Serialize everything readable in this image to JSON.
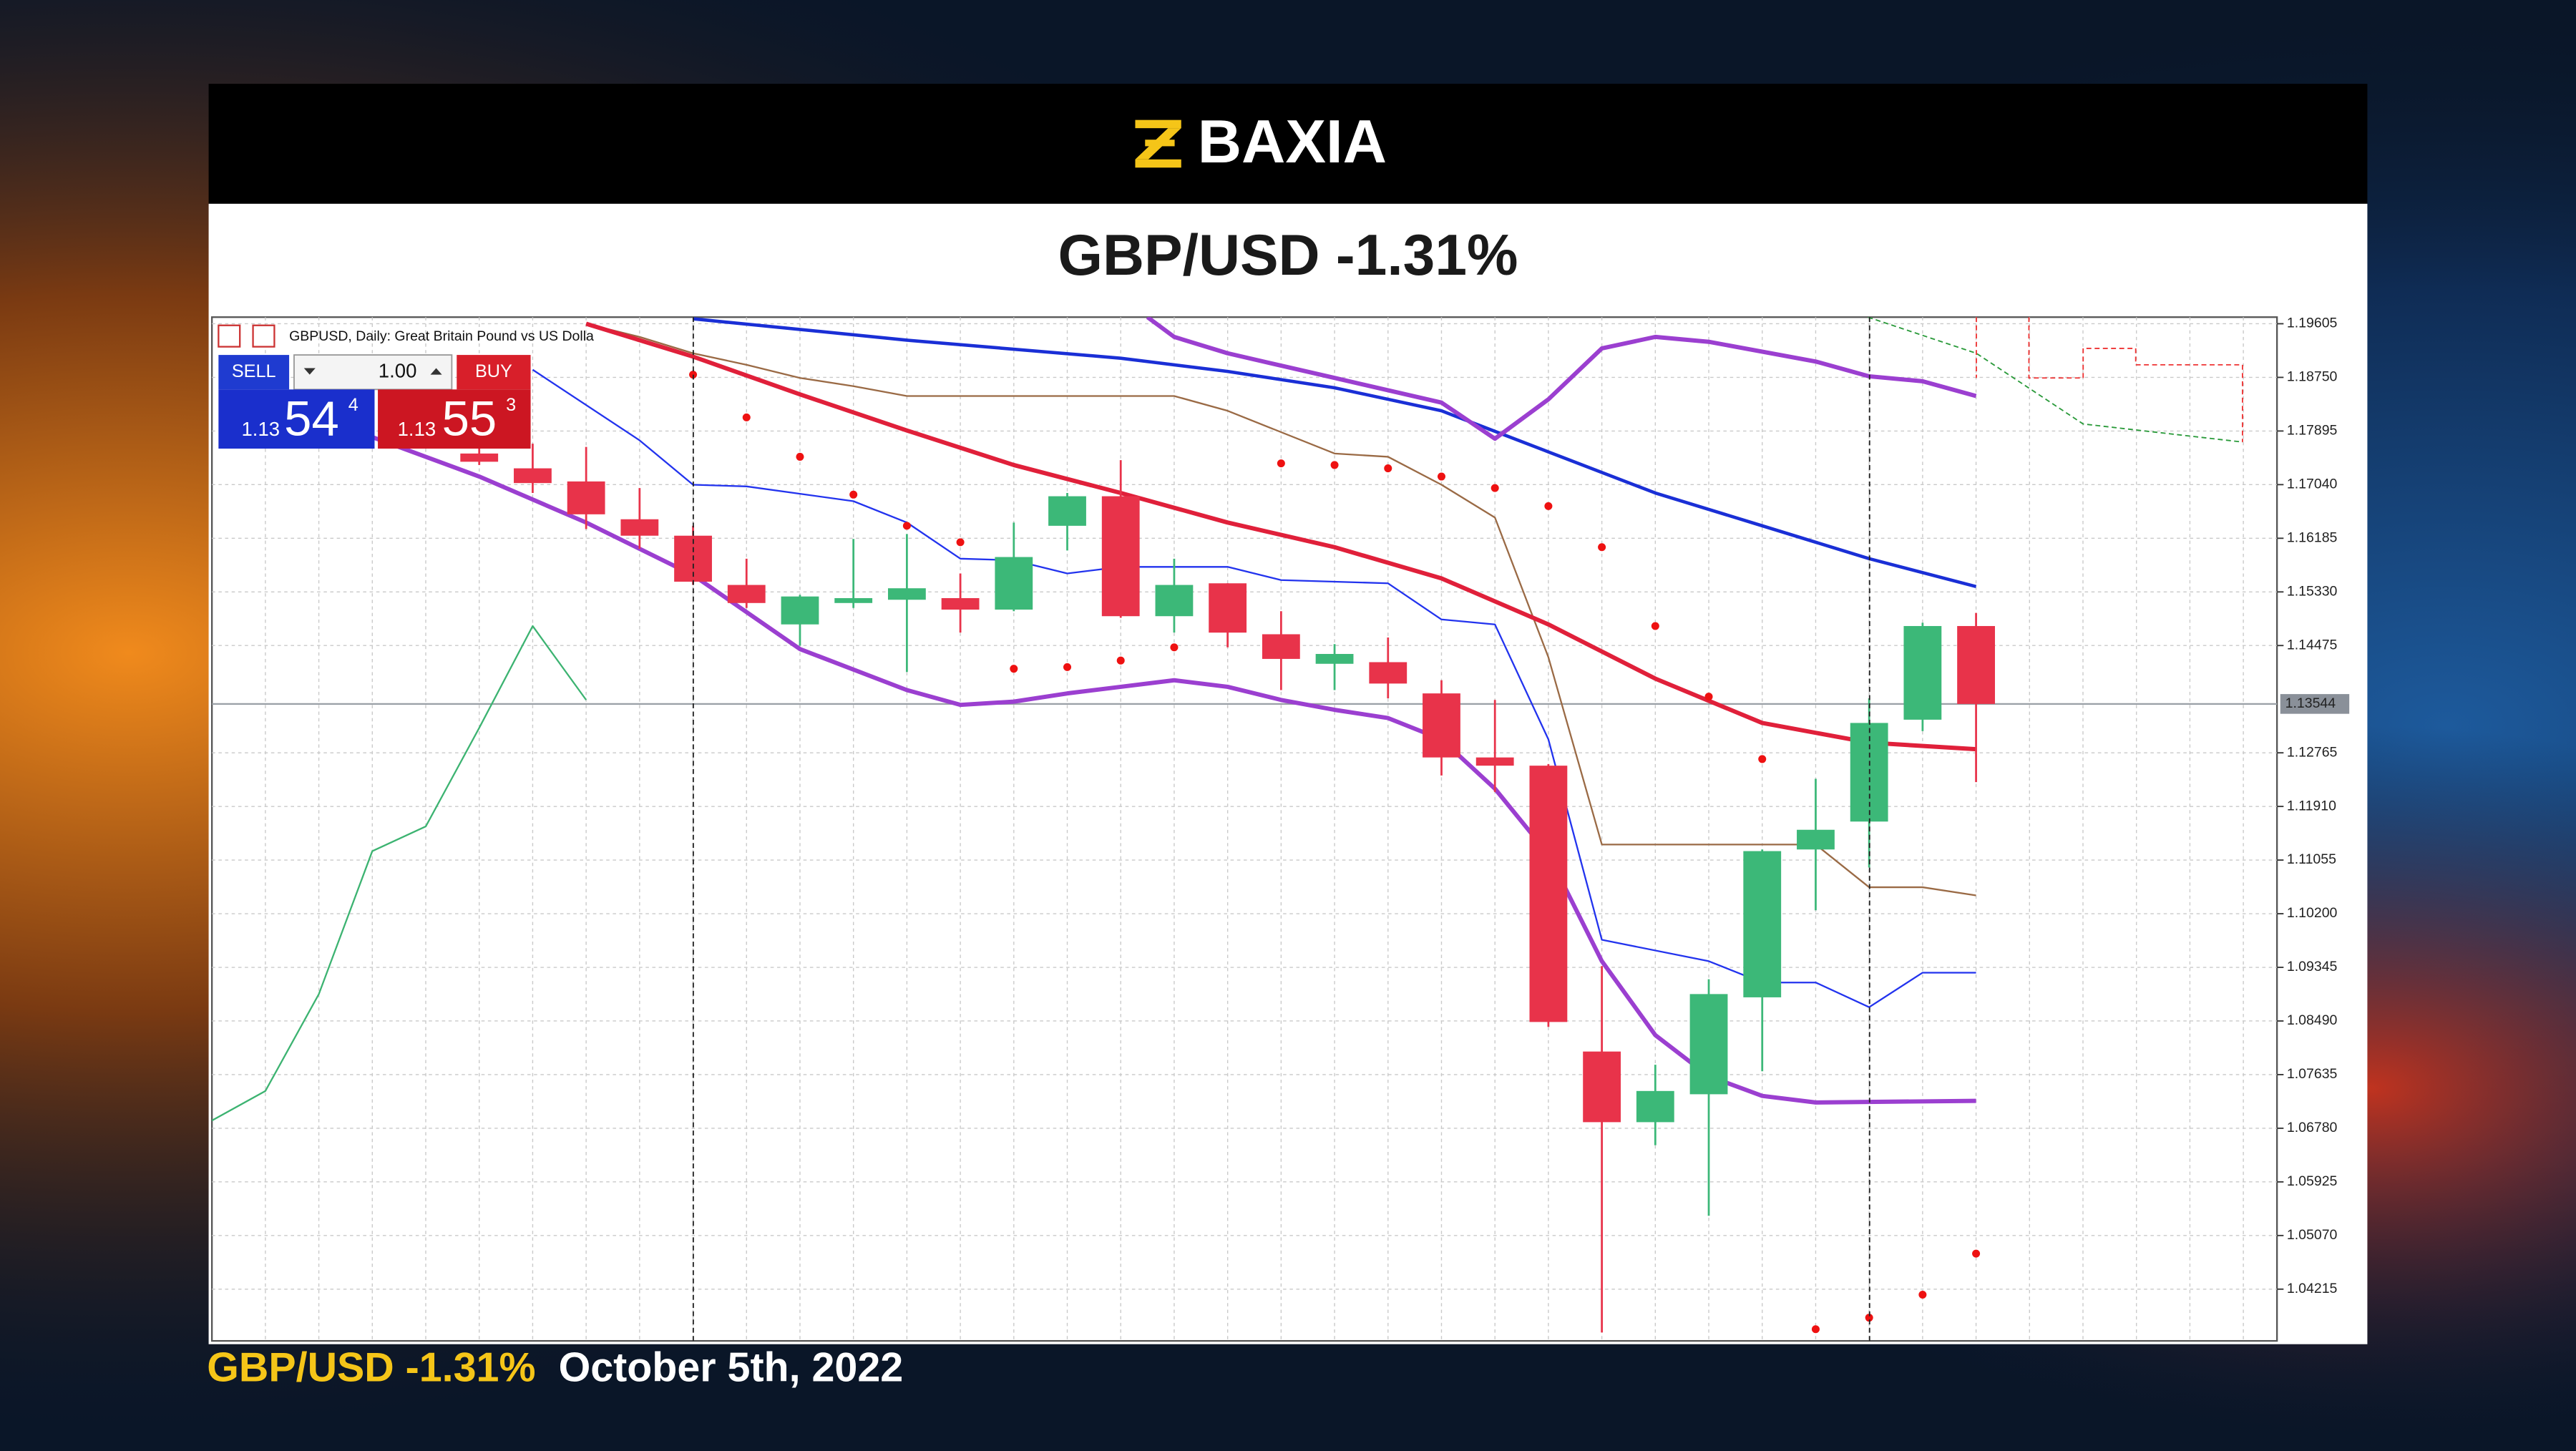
{
  "header": {
    "brand": "BAXIA"
  },
  "title": "GBP/USD -1.31%",
  "caption": {
    "pair": "GBP/USD -1.31%",
    "date": "October 5th, 2022"
  },
  "trade_panel": {
    "sell": "SELL",
    "buy": "BUY",
    "lot": "1.00",
    "bid": {
      "big": "1.13",
      "pips": "54",
      "point": "4"
    },
    "ask": {
      "big": "1.13",
      "pips": "55",
      "point": "3"
    }
  },
  "chart_data": {
    "type": "candlestick",
    "title": "GBPUSD, Daily:  Great Britain Pound vs US Dolla",
    "ylim": [
      1.0339,
      1.1971
    ],
    "yticks": [
      1.19605,
      {
        "value": 1.1875,
        "label": "1.18750"
      },
      1.17895,
      {
        "value": 1.1704,
        "label": "1.17040"
      },
      1.16185,
      {
        "value": 1.1533,
        "label": "1.15330"
      },
      1.14475,
      1.12765,
      {
        "value": 1.1191,
        "label": "1.11910"
      },
      1.11055,
      {
        "value": 1.102,
        "label": "1.10200"
      },
      1.09345,
      {
        "value": 1.0849,
        "label": "1.08490"
      },
      1.07635,
      {
        "value": 1.0678,
        "label": "1.06780"
      },
      1.05925,
      {
        "value": 1.0507,
        "label": "1.05070"
      },
      1.04215
    ],
    "grid": true,
    "current_price": 1.13544,
    "candles": {
      "up_color": "#3cb878",
      "down_color": "#e8334a",
      "x": [
        5,
        6,
        7,
        8,
        9,
        10,
        11,
        12,
        13,
        14,
        15,
        16,
        17,
        18,
        19,
        20,
        21,
        22,
        23,
        24,
        25,
        26,
        27,
        28,
        29,
        30,
        31,
        32,
        33
      ],
      "open": [
        1.17536,
        1.173,
        1.17091,
        1.16488,
        1.16226,
        1.15441,
        1.14812,
        1.15153,
        1.15205,
        1.15231,
        1.15048,
        1.16384,
        1.16855,
        1.14943,
        1.15467,
        1.14655,
        1.14184,
        1.1421,
        1.13712,
        1.12691,
        1.1256,
        1.08003,
        1.06877,
        1.07322,
        1.08867,
        1.11224,
        1.11669,
        1.13293,
        1.14786
      ],
      "high": [
        1.17746,
        1.17693,
        1.17641,
        1.16986,
        1.16384,
        1.1586,
        1.15284,
        1.16174,
        1.16253,
        1.15624,
        1.16436,
        1.16907,
        1.17431,
        1.1586,
        1.15467,
        1.15022,
        1.14498,
        1.14603,
        1.13922,
        1.13608,
        1.12586,
        1.09365,
        1.07793,
        1.09155,
        1.11224,
        1.1235,
        1.13634,
        1.14838,
        1.14996
      ],
      "low": [
        1.17353,
        1.16907,
        1.16331,
        1.16017,
        1.15441,
        1.15074,
        1.14472,
        1.15074,
        1.14053,
        1.14681,
        1.15022,
        1.15991,
        1.14917,
        1.14681,
        1.14446,
        1.13765,
        1.13765,
        1.13634,
        1.12403,
        1.12141,
        1.08396,
        1.03524,
        1.0651,
        1.05384,
        1.07689,
        1.10255,
        1.10936,
        1.1311,
        1.12298
      ],
      "close": [
        1.17405,
        1.17065,
        1.16567,
        1.16226,
        1.15493,
        1.15153,
        1.15257,
        1.15231,
        1.15388,
        1.15048,
        1.15886,
        1.16855,
        1.14943,
        1.15441,
        1.14681,
        1.14262,
        1.14341,
        1.13869,
        1.12691,
        1.1256,
        1.08474,
        1.06877,
        1.07374,
        1.08919,
        1.11198,
        1.11538,
        1.13241,
        1.14786,
        1.13544
      ]
    },
    "series": [
      {
        "color": "#3cb371",
        "width": 1,
        "x": [
          0,
          1,
          2,
          3,
          4,
          5,
          6,
          7
        ],
        "values": [
          1.06903,
          1.07374,
          1.08919,
          1.11198,
          1.11591,
          1.13162,
          1.14786,
          1.13608
        ]
      },
      {
        "color": "#9a6a45",
        "width": 1,
        "x": [
          7,
          8,
          9,
          10,
          11,
          12,
          13,
          18,
          19,
          21,
          22,
          23,
          24,
          25,
          26,
          30,
          31,
          32,
          33
        ],
        "values": [
          1.19605,
          1.19395,
          1.19134,
          1.1895,
          1.18741,
          1.1861,
          1.18453,
          1.18453,
          1.18217,
          1.17536,
          1.17484,
          1.17038,
          1.16515,
          1.14288,
          1.11303,
          1.11303,
          1.10622,
          1.10622,
          1.10491
        ]
      },
      {
        "color": "#2233ee",
        "width": 1,
        "x": [
          6,
          8,
          9,
          10,
          12,
          13,
          14,
          15,
          16,
          17,
          19,
          20,
          22,
          23,
          24,
          25,
          26,
          28,
          29,
          30,
          31,
          32,
          33
        ],
        "values": [
          1.18872,
          1.17746,
          1.17038,
          1.17012,
          1.16776,
          1.16436,
          1.1586,
          1.15834,
          1.15624,
          1.15729,
          1.15729,
          1.15519,
          1.15467,
          1.14891,
          1.14812,
          1.12979,
          1.09784,
          1.09443,
          1.09103,
          1.09103,
          1.0871,
          1.0926,
          1.0926
        ]
      },
      {
        "color": "#1a2fd6",
        "width": 2,
        "x": [
          9,
          13,
          17,
          19,
          21,
          23,
          25,
          27,
          29,
          31,
          33
        ],
        "values": [
          1.19684,
          1.19343,
          1.19055,
          1.18845,
          1.18584,
          1.18217,
          1.17562,
          1.16907,
          1.16384,
          1.1586,
          1.15415
        ]
      },
      {
        "color": "#9b3fd0",
        "width": 2.6,
        "x": [
          3,
          5,
          7,
          9,
          11,
          13,
          14,
          15,
          16,
          17,
          18,
          19,
          20,
          21,
          22,
          23,
          24,
          25,
          26,
          27,
          28,
          29,
          30,
          33
        ],
        "values": [
          1.17798,
          1.17169,
          1.16436,
          1.15598,
          1.14419,
          1.13765,
          1.13529,
          1.13581,
          1.13712,
          1.13817,
          1.13922,
          1.13817,
          1.13608,
          1.1345,
          1.13319,
          1.12979,
          1.12193,
          1.11146,
          1.09443,
          1.08265,
          1.0761,
          1.07296,
          1.07191,
          1.07217
        ]
      },
      {
        "color": "#9b3fd0",
        "width": 2.6,
        "x": [
          17.5,
          18,
          19,
          21,
          23,
          24,
          25,
          26,
          27,
          28,
          30,
          31,
          32,
          33
        ],
        "values": [
          1.1971,
          1.19395,
          1.19134,
          1.18741,
          1.18348,
          1.17772,
          1.184,
          1.19212,
          1.19395,
          1.19317,
          1.19003,
          1.18767,
          1.18688,
          1.18453
        ]
      },
      {
        "color": "#e0203a",
        "width": 2.6,
        "x": [
          7,
          9,
          11,
          13,
          15,
          17,
          19,
          21,
          23,
          25,
          27,
          29,
          31,
          33
        ],
        "values": [
          1.19605,
          1.19081,
          1.18479,
          1.17903,
          1.17353,
          1.16907,
          1.16436,
          1.16043,
          1.15546,
          1.14812,
          1.13948,
          1.13241,
          1.12927,
          1.12822
        ]
      },
      {
        "color": "#ee1111",
        "style": "dots",
        "x": [
          9,
          10,
          11,
          12,
          13,
          14,
          15,
          16,
          17,
          18,
          20,
          21,
          22,
          23,
          24,
          25,
          26,
          27,
          28,
          29,
          30,
          31,
          32,
          33
        ],
        "values": [
          1.18793,
          1.18112,
          1.17484,
          1.16881,
          1.16384,
          1.16122,
          1.14105,
          1.14131,
          1.14236,
          1.14446,
          1.17379,
          1.17353,
          1.173,
          1.17169,
          1.16986,
          1.16698,
          1.16043,
          1.14786,
          1.1366,
          1.12665,
          1.03577,
          1.0376,
          1.04127,
          1.04781
        ]
      }
    ]
  }
}
